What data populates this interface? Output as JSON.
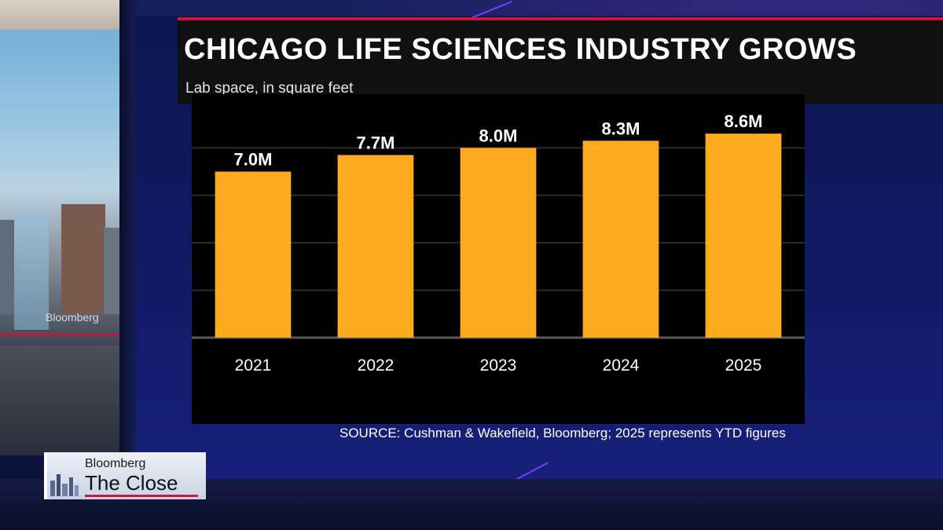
{
  "broadcast": {
    "brand": "Bloomberg",
    "show": "The Close",
    "watermark": "Bloomberg"
  },
  "colors": {
    "bar": "#ffaa1f",
    "bar_top": "#ffb42e",
    "title_bar_red": "#d0153a",
    "chart_bg": "#000000"
  },
  "chart_data": {
    "type": "bar",
    "title": "CHICAGO LIFE SCIENCES INDUSTRY GROWS",
    "subtitle": "Lab space, in square feet",
    "categories": [
      "2021",
      "2022",
      "2023",
      "2024",
      "2025"
    ],
    "values": [
      7.0,
      7.7,
      8.0,
      8.3,
      8.6
    ],
    "value_labels": [
      "7.0M",
      "7.7M",
      "8.0M",
      "8.3M",
      "8.6M"
    ],
    "unit": "M square feet",
    "xlabel": "",
    "ylabel": "",
    "ylim": [
      0,
      9.6
    ],
    "grid": true
  },
  "source": {
    "line1": "SOURCE: Cushman & Wakefield, Bloomberg; 2025 represents YTD figures"
  }
}
